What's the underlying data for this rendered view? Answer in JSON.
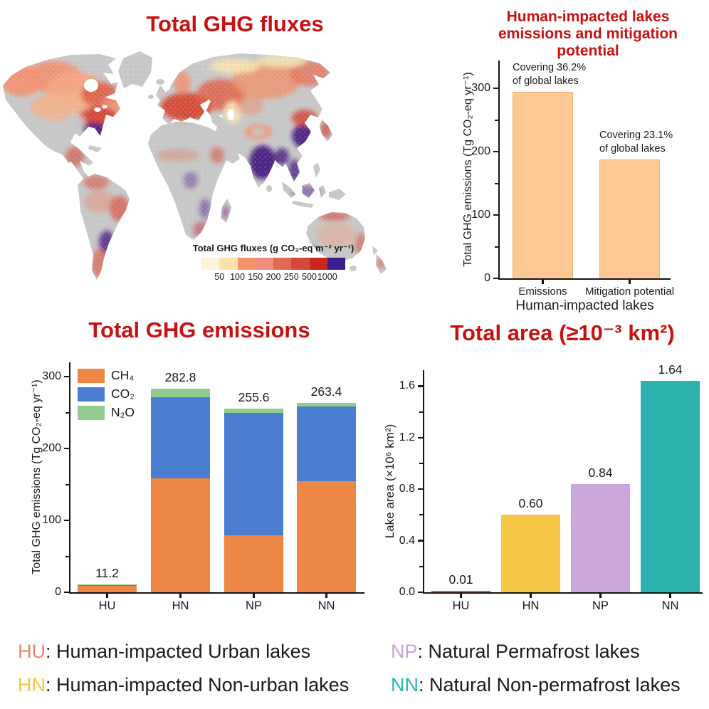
{
  "figure": {
    "map": {
      "title": "Total GHG fluxes",
      "colorbar": {
        "title": "Total GHG fluxes (g CO₂-eq m⁻² yr⁻¹)",
        "tick_labels": [
          "50",
          "100",
          "150",
          "200",
          "250",
          "500",
          "1000"
        ],
        "colors": [
          "#FDF4DC",
          "#FBE4AC",
          "#F4926B",
          "#EF8E7C",
          "#E06A58",
          "#D44A3A",
          "#CB271B",
          "#3B1E8C"
        ]
      }
    },
    "human_impacted": {
      "title_line1": "Human-impacted lakes",
      "title_line2": "emissions and mitigation potential",
      "ylabel": "Total GHG emissions (Tg CO₂-eq yr⁻¹)",
      "xlabel": "Human-impacted lakes"
    },
    "emissions": {
      "title": "Total GHG emissions",
      "ylabel": "Total GHG emissions (Tg CO₂-eq yr⁻¹)"
    },
    "area": {
      "title": "Total area (≥10⁻³ km²)",
      "ylabel": "Lake area (×10⁶ km²)"
    },
    "footer_legend": [
      {
        "abbr": "HU",
        "color": "#F5826B",
        "label": "Human-impacted Urban lakes"
      },
      {
        "abbr": "HN",
        "color": "#F8C33C",
        "label": "Human-impacted Non-urban lakes"
      },
      {
        "abbr": "NP",
        "color": "#C9A2DC",
        "label": "Natural Permafrost lakes"
      },
      {
        "abbr": "NN",
        "color": "#2BB5B8",
        "label": "Natural Non-permafrost lakes"
      }
    ]
  },
  "chart_data": [
    {
      "type": "heatmap",
      "title": "Total GHG fluxes",
      "legend_title": "Total GHG fluxes (g CO₂-eq m⁻² yr⁻¹)",
      "legend_ticks": [
        50,
        100,
        150,
        200,
        250,
        500,
        1000
      ],
      "legend_colors": [
        "#FDF4DC",
        "#FBE4AC",
        "#F4926B",
        "#EF8E7C",
        "#E06A58",
        "#D44A3A",
        "#CB271B",
        "#3B1E8C"
      ],
      "note": "world map of lake GHG fluxes; grey = low/no data"
    },
    {
      "type": "bar",
      "title": "Human-impacted lakes emissions and mitigation potential",
      "categories": [
        "Emissions",
        "Mitigation potential"
      ],
      "values": [
        294,
        188
      ],
      "bar_color": "#FDC893",
      "annotations": [
        "Covering 36.2%\nof global lakes",
        "Covering 23.1%\nof global lakes"
      ],
      "ylabel": "Total GHG emissions (Tg CO₂-eq yr⁻¹)",
      "xlabel": "Human-impacted lakes",
      "yticks": [
        0,
        100,
        200,
        300
      ],
      "yticks_minor": [
        50,
        150,
        250
      ],
      "ylim": [
        0,
        344
      ]
    },
    {
      "type": "bar",
      "stacked": true,
      "title": "Total GHG emissions",
      "categories": [
        "HU",
        "HN",
        "NP",
        "NN"
      ],
      "series": [
        {
          "name": "CH₄",
          "color": "#EE8745",
          "values": [
            9.0,
            158.0,
            79.0,
            154.0
          ]
        },
        {
          "name": "CO₂",
          "color": "#4A7DCF",
          "values": [
            1.5,
            113.0,
            170.6,
            104.0
          ]
        },
        {
          "name": "N₂O",
          "color": "#92CC90",
          "values": [
            0.7,
            11.8,
            6.0,
            5.4
          ]
        }
      ],
      "totals": [
        11.2,
        282.8,
        255.6,
        263.4
      ],
      "total_labels": [
        "11.2",
        "282.8",
        "255.6",
        "263.4"
      ],
      "ylabel": "Total GHG emissions (Tg CO₂-eq yr⁻¹)",
      "yticks": [
        0,
        100,
        200,
        300
      ],
      "yticks_minor": [
        50,
        150,
        250
      ],
      "ylim": [
        0,
        320
      ]
    },
    {
      "type": "bar",
      "title": "Total area (≥10⁻³ km²)",
      "categories": [
        "HU",
        "HN",
        "NP",
        "NN"
      ],
      "values": [
        0.01,
        0.6,
        0.84,
        1.64
      ],
      "value_labels": [
        "0.01",
        "0.60",
        "0.84",
        "1.64"
      ],
      "colors": [
        "#ED5331",
        "#F6C646",
        "#CAA7DB",
        "#2BB1AE"
      ],
      "ylabel": "Lake area (×10⁶ km²)",
      "yticks": [
        "0.0",
        "0.4",
        "0.8",
        "1.2",
        "1.6"
      ],
      "yticks_minor": [
        0.2,
        0.6,
        1.0,
        1.4
      ],
      "ylim": [
        0,
        1.72
      ]
    }
  ]
}
